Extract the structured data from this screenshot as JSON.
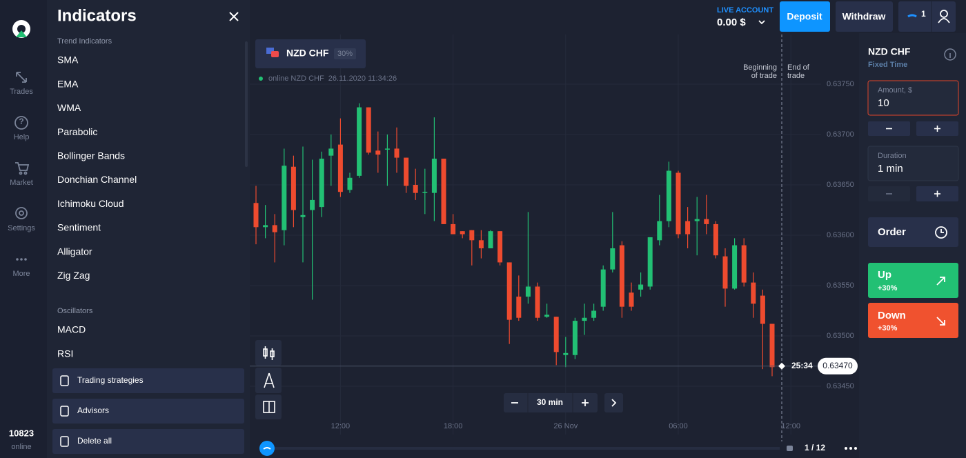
{
  "nav": {
    "items": [
      "Trades",
      "Help",
      "Market",
      "Settings",
      "More"
    ],
    "online_count": "10823",
    "online_label": "online"
  },
  "indicators": {
    "title": "Indicators",
    "groups": [
      {
        "heading": "Trend Indicators",
        "items": [
          "SMA",
          "EMA",
          "WMA",
          "Parabolic",
          "Bollinger Bands",
          "Donchian Channel",
          "Ichimoku Cloud",
          "Sentiment",
          "Alligator",
          "Zig Zag"
        ]
      },
      {
        "heading": "Oscillators",
        "items": [
          "MACD",
          "RSI"
        ]
      }
    ],
    "buttons": [
      "Trading strategies",
      "Advisors",
      "Delete all"
    ]
  },
  "header": {
    "account_label": "LIVE ACCOUNT",
    "balance": "0.00 $",
    "deposit": "Deposit",
    "withdraw": "Withdraw",
    "badge": "1"
  },
  "asset": {
    "name": "NZD CHF",
    "payout": "30%",
    "status": "online NZD CHF  26.11.2020 11:34:26"
  },
  "chart_data": {
    "type": "candlestick",
    "up_color": "#22c074",
    "down_color": "#ee4b2f",
    "open": [
      0.63632,
      0.63608,
      0.6361,
      0.63605,
      0.63668,
      0.63618,
      0.63625,
      0.63628,
      0.63679,
      0.6369,
      0.63645,
      0.63659,
      0.63727,
      0.63684,
      0.63685,
      0.63686,
      0.63677,
      0.6365,
      0.63642,
      0.63642,
      0.63676,
      0.63611,
      0.63604,
      0.63605,
      0.63595,
      0.63587,
      0.63604,
      0.63573,
      0.63539,
      0.63539,
      0.63549,
      0.63519,
      0.63519,
      0.63481,
      0.63481,
      0.63515,
      0.63518,
      0.63529,
      0.63566,
      0.6359,
      0.63543,
      0.63546,
      0.63549,
      0.63595,
      0.63614,
      0.63662,
      0.63614,
      0.63614,
      0.63616,
      0.63611,
      0.63579,
      0.63547,
      0.6359,
      0.63553,
      0.6354,
      0.63512
    ],
    "high": [
      0.63649,
      0.6363,
      0.63621,
      0.63686,
      0.63679,
      0.63688,
      0.63675,
      0.63683,
      0.637,
      0.63716,
      0.63662,
      0.63731,
      0.63727,
      0.63703,
      0.637,
      0.63707,
      0.63677,
      0.63666,
      0.63666,
      0.63717,
      0.63676,
      0.63621,
      0.63604,
      0.63605,
      0.63605,
      0.63605,
      0.63604,
      0.63573,
      0.6356,
      0.63623,
      0.63553,
      0.63532,
      0.63519,
      0.63499,
      0.63518,
      0.63532,
      0.63532,
      0.6357,
      0.63623,
      0.63594,
      0.63553,
      0.63563,
      0.63598,
      0.6364,
      0.63673,
      0.63664,
      0.63628,
      0.63638,
      0.6364,
      0.63614,
      0.63587,
      0.63597,
      0.63597,
      0.63563,
      0.63546,
      0.63512
    ],
    "low": [
      0.63591,
      0.63597,
      0.63573,
      0.6359,
      0.63608,
      0.63573,
      0.63536,
      0.63618,
      0.63649,
      0.63638,
      0.63642,
      0.63657,
      0.6368,
      0.63662,
      0.63649,
      0.63662,
      0.63642,
      0.63635,
      0.63621,
      0.63614,
      0.63611,
      0.63601,
      0.63597,
      0.6357,
      0.63577,
      0.63587,
      0.6357,
      0.63492,
      0.63515,
      0.63532,
      0.63515,
      0.63518,
      0.63471,
      0.63469,
      0.63477,
      0.63501,
      0.63515,
      0.63525,
      0.63563,
      0.63518,
      0.63525,
      0.63539,
      0.63546,
      0.6359,
      0.63608,
      0.63597,
      0.63587,
      0.6358,
      0.63601,
      0.63577,
      0.63529,
      0.63546,
      0.63549,
      0.63518,
      0.63467,
      0.6346
    ],
    "close": [
      0.63608,
      0.6361,
      0.63603,
      0.63669,
      0.63625,
      0.6362,
      0.63635,
      0.63676,
      0.63686,
      0.63643,
      0.63657,
      0.63727,
      0.63682,
      0.6368,
      0.63686,
      0.63677,
      0.63649,
      0.63642,
      0.63643,
      0.63676,
      0.63611,
      0.63601,
      0.63601,
      0.63595,
      0.63587,
      0.63604,
      0.63573,
      0.63516,
      0.63518,
      0.63549,
      0.63518,
      0.63521,
      0.63484,
      0.63483,
      0.63515,
      0.63518,
      0.63525,
      0.63566,
      0.63587,
      0.63529,
      0.63529,
      0.63551,
      0.63598,
      0.63614,
      0.63664,
      0.63601,
      0.63601,
      0.63616,
      0.63611,
      0.6358,
      0.63547,
      0.6359,
      0.63553,
      0.63532,
      0.63512,
      0.63469
    ],
    "ylim": [
      0.6345,
      0.6375
    ],
    "yticks": [
      {
        "value": 0.6345,
        "label": "0.63450"
      },
      {
        "value": 0.635,
        "label": "0.63500"
      },
      {
        "value": 0.6355,
        "label": "0.63550"
      },
      {
        "value": 0.636,
        "label": "0.63600"
      },
      {
        "value": 0.6365,
        "label": "0.63650"
      },
      {
        "value": 0.637,
        "label": "0.63700"
      },
      {
        "value": 0.6375,
        "label": "0.63750"
      }
    ],
    "xticks": [
      {
        "value": 9,
        "label": "12:00"
      },
      {
        "value": 21,
        "label": "18:00"
      },
      {
        "value": 33,
        "label": "26 Nov"
      },
      {
        "value": 45,
        "label": "06:00"
      },
      {
        "value": 57,
        "label": "12:00"
      }
    ],
    "grid": true,
    "current_price": {
      "value": 0.6347,
      "label": "0.63470"
    },
    "timer": "25:34",
    "markers": {
      "begin": [
        "Beginning",
        "of trade"
      ],
      "end": [
        "End of",
        "trade"
      ]
    }
  },
  "controls": {
    "timeframe": "30 min",
    "pagination": "1 / 12"
  },
  "trade_panel": {
    "asset": "NZD CHF",
    "mode": "Fixed Time",
    "amount_label": "Amount, $",
    "amount": "10",
    "duration_label": "Duration",
    "duration": "1 min",
    "order": "Order",
    "up": "Up",
    "up_payout": "+30%",
    "down": "Down",
    "down_payout": "+30%"
  }
}
